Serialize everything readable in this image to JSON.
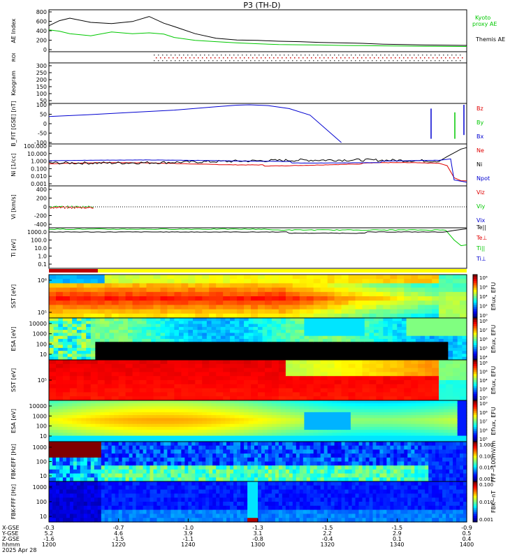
{
  "title": "P3 (TH-D)",
  "colors": {
    "green": "#00c800",
    "red": "#e00000",
    "blue": "#0000d0",
    "black": "#000000"
  },
  "chart_data": [
    {
      "type": "line",
      "ylabel": "AE Index",
      "yticks": [
        "800",
        "600",
        "400",
        "200",
        "0"
      ],
      "ylim": [
        -50,
        850
      ],
      "x_minutes": [
        0,
        5,
        10,
        20,
        30,
        40,
        48,
        55,
        60,
        70,
        80,
        90,
        100,
        110,
        120,
        130,
        140,
        150,
        160,
        170,
        180,
        200
      ],
      "series": [
        {
          "name": "Kyoto proxy AE",
          "color": "#00c800",
          "values": [
            420,
            390,
            330,
            280,
            370,
            330,
            350,
            320,
            240,
            170,
            140,
            110,
            90,
            70,
            65,
            60,
            50,
            45,
            40,
            35,
            30,
            25
          ]
        },
        {
          "name": "Themis AE",
          "color": "#000000",
          "values": [
            520,
            640,
            700,
            600,
            570,
            620,
            740,
            580,
            500,
            330,
            220,
            180,
            170,
            150,
            140,
            120,
            110,
            100,
            80,
            70,
            60,
            50
          ]
        }
      ]
    },
    {
      "type": "table",
      "ylabel": "ROI",
      "yticks": []
    },
    {
      "type": "heatmap",
      "ylabel": "Keogram",
      "yticks": [
        "300",
        "250",
        "200",
        "150",
        "100",
        "50"
      ]
    },
    {
      "type": "line",
      "ylabel": "B_FIT [GSE] [nT]",
      "yticks": [
        "100",
        "50",
        "0",
        "-50",
        "-100"
      ],
      "ylim": [
        -100,
        100
      ],
      "series": [
        {
          "name": "Bz",
          "color": "#e00000"
        },
        {
          "name": "By",
          "color": "#00c800"
        },
        {
          "name": "Bx",
          "color": "#0000d0"
        }
      ],
      "bx_x": [
        0,
        20,
        40,
        60,
        80,
        90,
        96,
        105,
        115,
        125,
        140
      ],
      "bx_y": [
        38,
        48,
        60,
        72,
        90,
        98,
        100,
        96,
        80,
        45,
        -100
      ]
    },
    {
      "type": "line",
      "ylabel": "Ni [1/cc]",
      "yscale": "log",
      "yticks": [
        "100.000",
        "10.000",
        "1.000",
        "0.100",
        "0.010",
        "0.001"
      ],
      "series": [
        {
          "name": "Ne",
          "color": "#e00000"
        },
        {
          "name": "Ni",
          "color": "#000000"
        },
        {
          "name": "Npot",
          "color": "#0000d0"
        }
      ]
    },
    {
      "type": "scatter",
      "ylabel": "Vi [km/s]",
      "yticks": [
        "400",
        "200",
        "0",
        "-200",
        "-400"
      ],
      "ylim": [
        -450,
        450
      ],
      "series": [
        {
          "name": "Viz",
          "color": "#e00000"
        },
        {
          "name": "Viy",
          "color": "#00c800"
        },
        {
          "name": "Vix",
          "color": "#0000d0"
        }
      ]
    },
    {
      "type": "line",
      "ylabel": "Ti [eV]",
      "yscale": "log",
      "yticks": [
        "1000.0",
        "100.0",
        "10.0",
        "1.0",
        "0.1"
      ],
      "series": [
        {
          "name": "Te||",
          "color": "#000000"
        },
        {
          "name": "Te⊥",
          "color": "#e00000"
        },
        {
          "name": "Ti||",
          "color": "#00c800"
        },
        {
          "name": "Ti⊥",
          "color": "#0000d0"
        }
      ]
    },
    {
      "type": "heatmap",
      "ylabel": "SST [eV]",
      "yticks": [
        "10⁶",
        "10⁵"
      ],
      "cbar_ticks": [
        "10⁸",
        "10⁶",
        "10⁴",
        "10²",
        "10⁰"
      ],
      "cbar_label": "Eflux, EFU"
    },
    {
      "type": "heatmap",
      "ylabel": "ESA [eV]",
      "yticks": [
        "10000",
        "1000",
        "100",
        "10"
      ],
      "cbar_ticks": [
        "10⁸",
        "10⁷",
        "10⁶",
        "10⁵",
        "10⁴"
      ],
      "cbar_label": "Eflux, EFU"
    },
    {
      "type": "heatmap",
      "ylabel": "SST [eV]",
      "yticks": [
        "10⁵"
      ],
      "cbar_ticks": [
        "10⁸",
        "10⁶",
        "10⁴",
        "10²",
        "10⁰"
      ],
      "cbar_label": "Eflux, EFU"
    },
    {
      "type": "heatmap",
      "ylabel": "ESA [eV]",
      "yticks": [
        "10000",
        "1000",
        "100",
        "10"
      ],
      "cbar_ticks": [
        "10⁹",
        "10⁸",
        "10⁷",
        "10⁶",
        "10⁵"
      ],
      "cbar_label": "Eflux, EFU"
    },
    {
      "type": "heatmap",
      "ylabel": "FBK-EFF [Hz]",
      "yticks": [
        "1000",
        "100",
        "10"
      ],
      "cbar_ticks": [
        "1.000",
        "0.100",
        "0.010",
        "0.001"
      ],
      "cbar_label": "FFF~100mV/m"
    },
    {
      "type": "heatmap",
      "ylabel": "FBK-FFF [Hz]",
      "yticks": [
        "1000",
        "100",
        "10"
      ],
      "cbar_ticks": [
        "0.100",
        "0.010",
        "0.001"
      ],
      "cbar_label": "FBK~nT"
    }
  ],
  "xaxis": {
    "row_labels": [
      "X-GSE",
      "Y-GSE",
      "Z-GSE",
      "hhmm",
      "2025 Apr 28"
    ],
    "ticks": [
      {
        "x": "-0.3",
        "y": "5.2",
        "z": "-1.6",
        "t": "1200"
      },
      {
        "x": "-0.7",
        "y": "4.6",
        "z": "-1.5",
        "t": "1220"
      },
      {
        "x": "-1.0",
        "y": "3.9",
        "z": "-1.1",
        "t": "1240"
      },
      {
        "x": "-1.3",
        "y": "3.1",
        "z": "-0.8",
        "t": "1300"
      },
      {
        "x": "-1.5",
        "y": "2.2",
        "z": "-0.4",
        "t": "1320"
      },
      {
        "x": "-1.5",
        "y": "2.9",
        "z": "0.1",
        "t": "1340"
      },
      {
        "x": "-0.9",
        "y": "0.5",
        "z": "0.4",
        "t": "1400"
      }
    ]
  }
}
